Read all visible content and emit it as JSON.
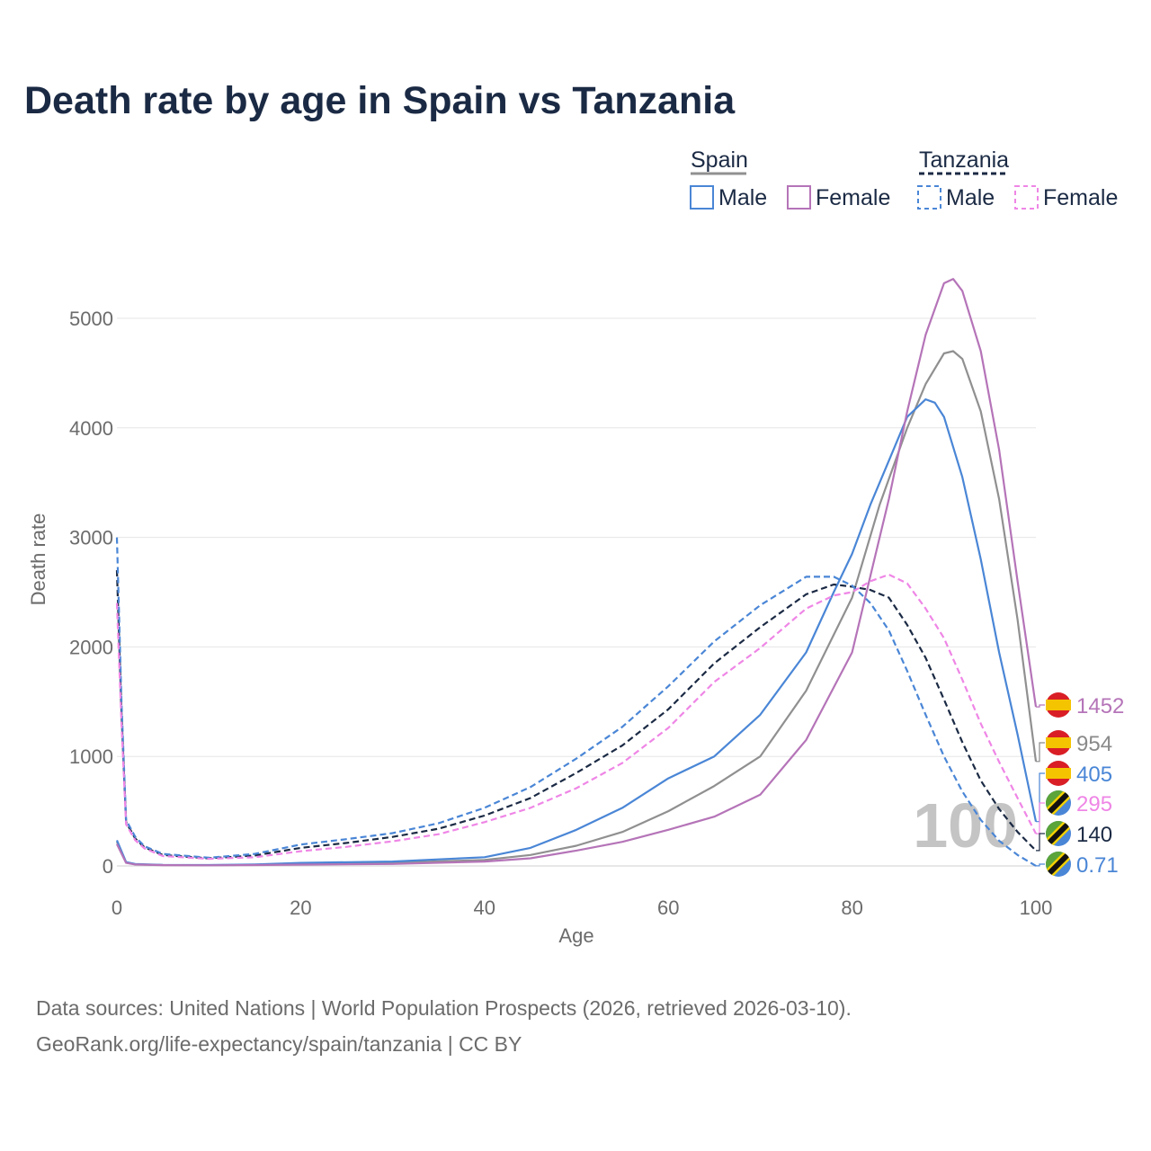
{
  "chart_data": {
    "type": "line",
    "title": "Death rate by age in Spain vs Tanzania",
    "xlabel": "Age",
    "ylabel": "Death rate",
    "xlim": [
      0,
      100
    ],
    "ylim": [
      0,
      5600
    ],
    "xticks": [
      0,
      20,
      40,
      60,
      80,
      100
    ],
    "yticks": [
      0,
      1000,
      2000,
      3000,
      4000,
      5000
    ],
    "grid": true,
    "legend_position": "top-right",
    "legend": {
      "groups": [
        {
          "name": "Spain",
          "style": "solid",
          "entries": [
            {
              "label": "Male",
              "color": "#4a86d6"
            },
            {
              "label": "Female",
              "color": "#b574b8"
            }
          ]
        },
        {
          "name": "Tanzania",
          "style": "dashed",
          "entries": [
            {
              "label": "Male",
              "color": "#4a86d6"
            },
            {
              "label": "Female",
              "color": "#ef86e6"
            }
          ]
        }
      ]
    },
    "watermark": "100",
    "series": [
      {
        "name": "Spain Total",
        "country": "Spain",
        "sex": "Total",
        "color": "#909090",
        "dash": false,
        "x": [
          0,
          1,
          2,
          5,
          10,
          15,
          20,
          30,
          40,
          45,
          50,
          55,
          60,
          65,
          70,
          75,
          80,
          83,
          86,
          88,
          90,
          91,
          92,
          94,
          96,
          98,
          100
        ],
        "y": [
          220,
          30,
          15,
          8,
          7,
          10,
          20,
          28,
          55,
          100,
          185,
          310,
          500,
          730,
          1000,
          1600,
          2450,
          3300,
          4000,
          4400,
          4680,
          4700,
          4630,
          4150,
          3350,
          2250,
          954
        ]
      },
      {
        "name": "Spain Male",
        "country": "Spain",
        "sex": "Male",
        "color": "#4a86d6",
        "dash": false,
        "x": [
          0,
          1,
          2,
          5,
          10,
          15,
          20,
          30,
          40,
          45,
          50,
          55,
          60,
          65,
          70,
          75,
          78,
          80,
          82,
          84,
          86,
          88,
          89,
          90,
          92,
          94,
          96,
          98,
          100
        ],
        "y": [
          235,
          35,
          18,
          10,
          8,
          14,
          28,
          40,
          80,
          165,
          330,
          530,
          800,
          1000,
          1380,
          1950,
          2500,
          2850,
          3300,
          3700,
          4100,
          4260,
          4230,
          4100,
          3550,
          2800,
          1950,
          1200,
          405
        ]
      },
      {
        "name": "Spain Female",
        "country": "Spain",
        "sex": "Female",
        "color": "#b574b8",
        "dash": false,
        "x": [
          0,
          1,
          2,
          5,
          10,
          15,
          20,
          30,
          40,
          45,
          50,
          55,
          60,
          65,
          70,
          75,
          80,
          82,
          84,
          86,
          88,
          90,
          91,
          92,
          94,
          96,
          98,
          100
        ],
        "y": [
          200,
          28,
          13,
          7,
          6,
          8,
          12,
          18,
          40,
          70,
          140,
          220,
          330,
          450,
          650,
          1150,
          1950,
          2650,
          3350,
          4150,
          4850,
          5320,
          5360,
          5250,
          4700,
          3800,
          2600,
          1452
        ]
      },
      {
        "name": "Tanzania Total",
        "country": "Tanzania",
        "sex": "Total",
        "color": "#1b2a44",
        "dash": true,
        "x": [
          0,
          0.5,
          1,
          2,
          3,
          5,
          10,
          15,
          20,
          25,
          30,
          35,
          40,
          45,
          50,
          55,
          60,
          65,
          70,
          75,
          78,
          80,
          82,
          84,
          86,
          88,
          90,
          92,
          94,
          96,
          98,
          100
        ],
        "y": [
          2700,
          1400,
          400,
          250,
          170,
          100,
          70,
          95,
          165,
          210,
          265,
          340,
          460,
          620,
          850,
          1100,
          1430,
          1850,
          2180,
          2480,
          2570,
          2550,
          2520,
          2450,
          2200,
          1900,
          1520,
          1130,
          780,
          520,
          310,
          140
        ]
      },
      {
        "name": "Tanzania Male",
        "country": "Tanzania",
        "sex": "Male",
        "color": "#4a86d6",
        "dash": true,
        "x": [
          0,
          0.5,
          1,
          2,
          3,
          5,
          10,
          15,
          20,
          25,
          30,
          35,
          40,
          45,
          50,
          55,
          60,
          65,
          70,
          75,
          78,
          80,
          82,
          84,
          86,
          88,
          90,
          92,
          94,
          96,
          98,
          100
        ],
        "y": [
          3000,
          1500,
          420,
          265,
          180,
          110,
          75,
          110,
          195,
          245,
          300,
          390,
          530,
          720,
          980,
          1270,
          1640,
          2050,
          2380,
          2640,
          2640,
          2560,
          2400,
          2150,
          1780,
          1380,
          1000,
          680,
          420,
          230,
          100,
          0.71
        ]
      },
      {
        "name": "Tanzania Female",
        "country": "Tanzania",
        "sex": "Female",
        "color": "#ef86e6",
        "dash": true,
        "x": [
          0,
          0.5,
          1,
          2,
          3,
          5,
          10,
          15,
          20,
          25,
          30,
          35,
          40,
          45,
          50,
          55,
          60,
          65,
          70,
          75,
          78,
          80,
          82,
          84,
          86,
          88,
          90,
          92,
          94,
          96,
          98,
          100
        ],
        "y": [
          2400,
          1300,
          380,
          235,
          160,
          90,
          65,
          80,
          135,
          175,
          225,
          290,
          400,
          530,
          710,
          940,
          1260,
          1680,
          1990,
          2350,
          2470,
          2500,
          2600,
          2660,
          2580,
          2350,
          2080,
          1700,
          1300,
          950,
          620,
          295
        ]
      }
    ],
    "end_labels": [
      {
        "value": "1452",
        "country": "Spain",
        "color": "#b574b8"
      },
      {
        "value": "954",
        "country": "Spain",
        "color": "#8a8a8a"
      },
      {
        "value": "405",
        "country": "Spain",
        "color": "#4a86d6"
      },
      {
        "value": "295",
        "country": "Tanzania",
        "color": "#ef86e6"
      },
      {
        "value": "140",
        "country": "Tanzania",
        "color": "#1b2a44"
      },
      {
        "value": "0.71",
        "country": "Tanzania",
        "color": "#4a86d6"
      }
    ]
  },
  "footer": {
    "line1": "Data sources: United Nations | World Population Prospects (2026, retrieved 2026-03-10).",
    "line2": "GeoRank.org/life-expectancy/spain/tanzania | CC BY"
  }
}
